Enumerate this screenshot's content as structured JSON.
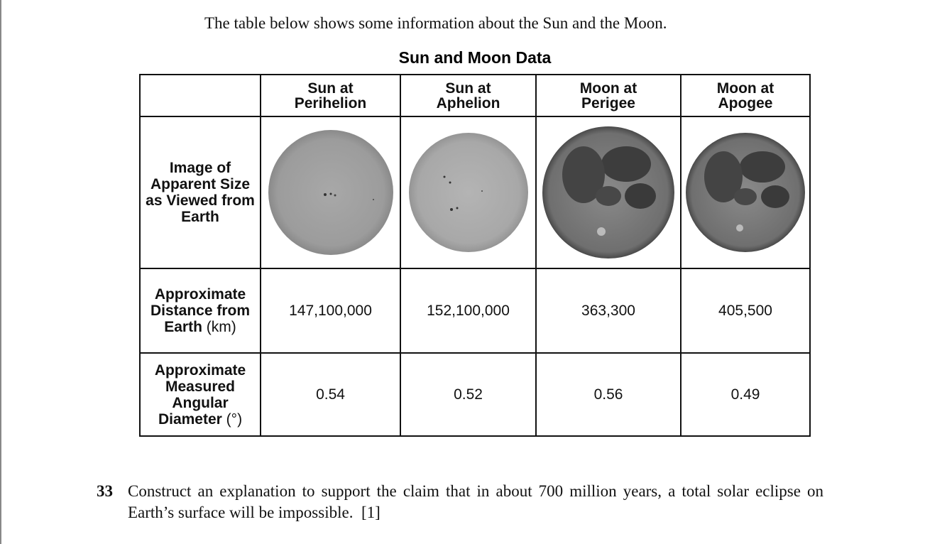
{
  "intro": "The table below shows some information about the Sun and the Moon.",
  "table": {
    "title": "Sun and Moon Data",
    "columns": [
      {
        "line1": "Sun at",
        "line2": "Perihelion"
      },
      {
        "line1": "Sun at",
        "line2": "Aphelion"
      },
      {
        "line1": "Moon at",
        "line2": "Perigee"
      },
      {
        "line1": "Moon at",
        "line2": "Apogee"
      }
    ],
    "rows": {
      "image": {
        "label": "Image of Apparent Size as Viewed from Earth"
      },
      "distance": {
        "label": "Approximate Distance from Earth",
        "unit": "(km)",
        "values": [
          "147,100,000",
          "152,100,000",
          "363,300",
          "405,500"
        ]
      },
      "angular": {
        "label": "Approximate Measured Angular Diameter",
        "unit": "(°)",
        "values": [
          "0.54",
          "0.52",
          "0.56",
          "0.49"
        ]
      }
    }
  },
  "question": {
    "number": "33",
    "text": "Construct an explanation to support the claim that in about 700 million years, a total solar eclipse on Earth’s surface will be impossible.",
    "credit": "[1]"
  }
}
